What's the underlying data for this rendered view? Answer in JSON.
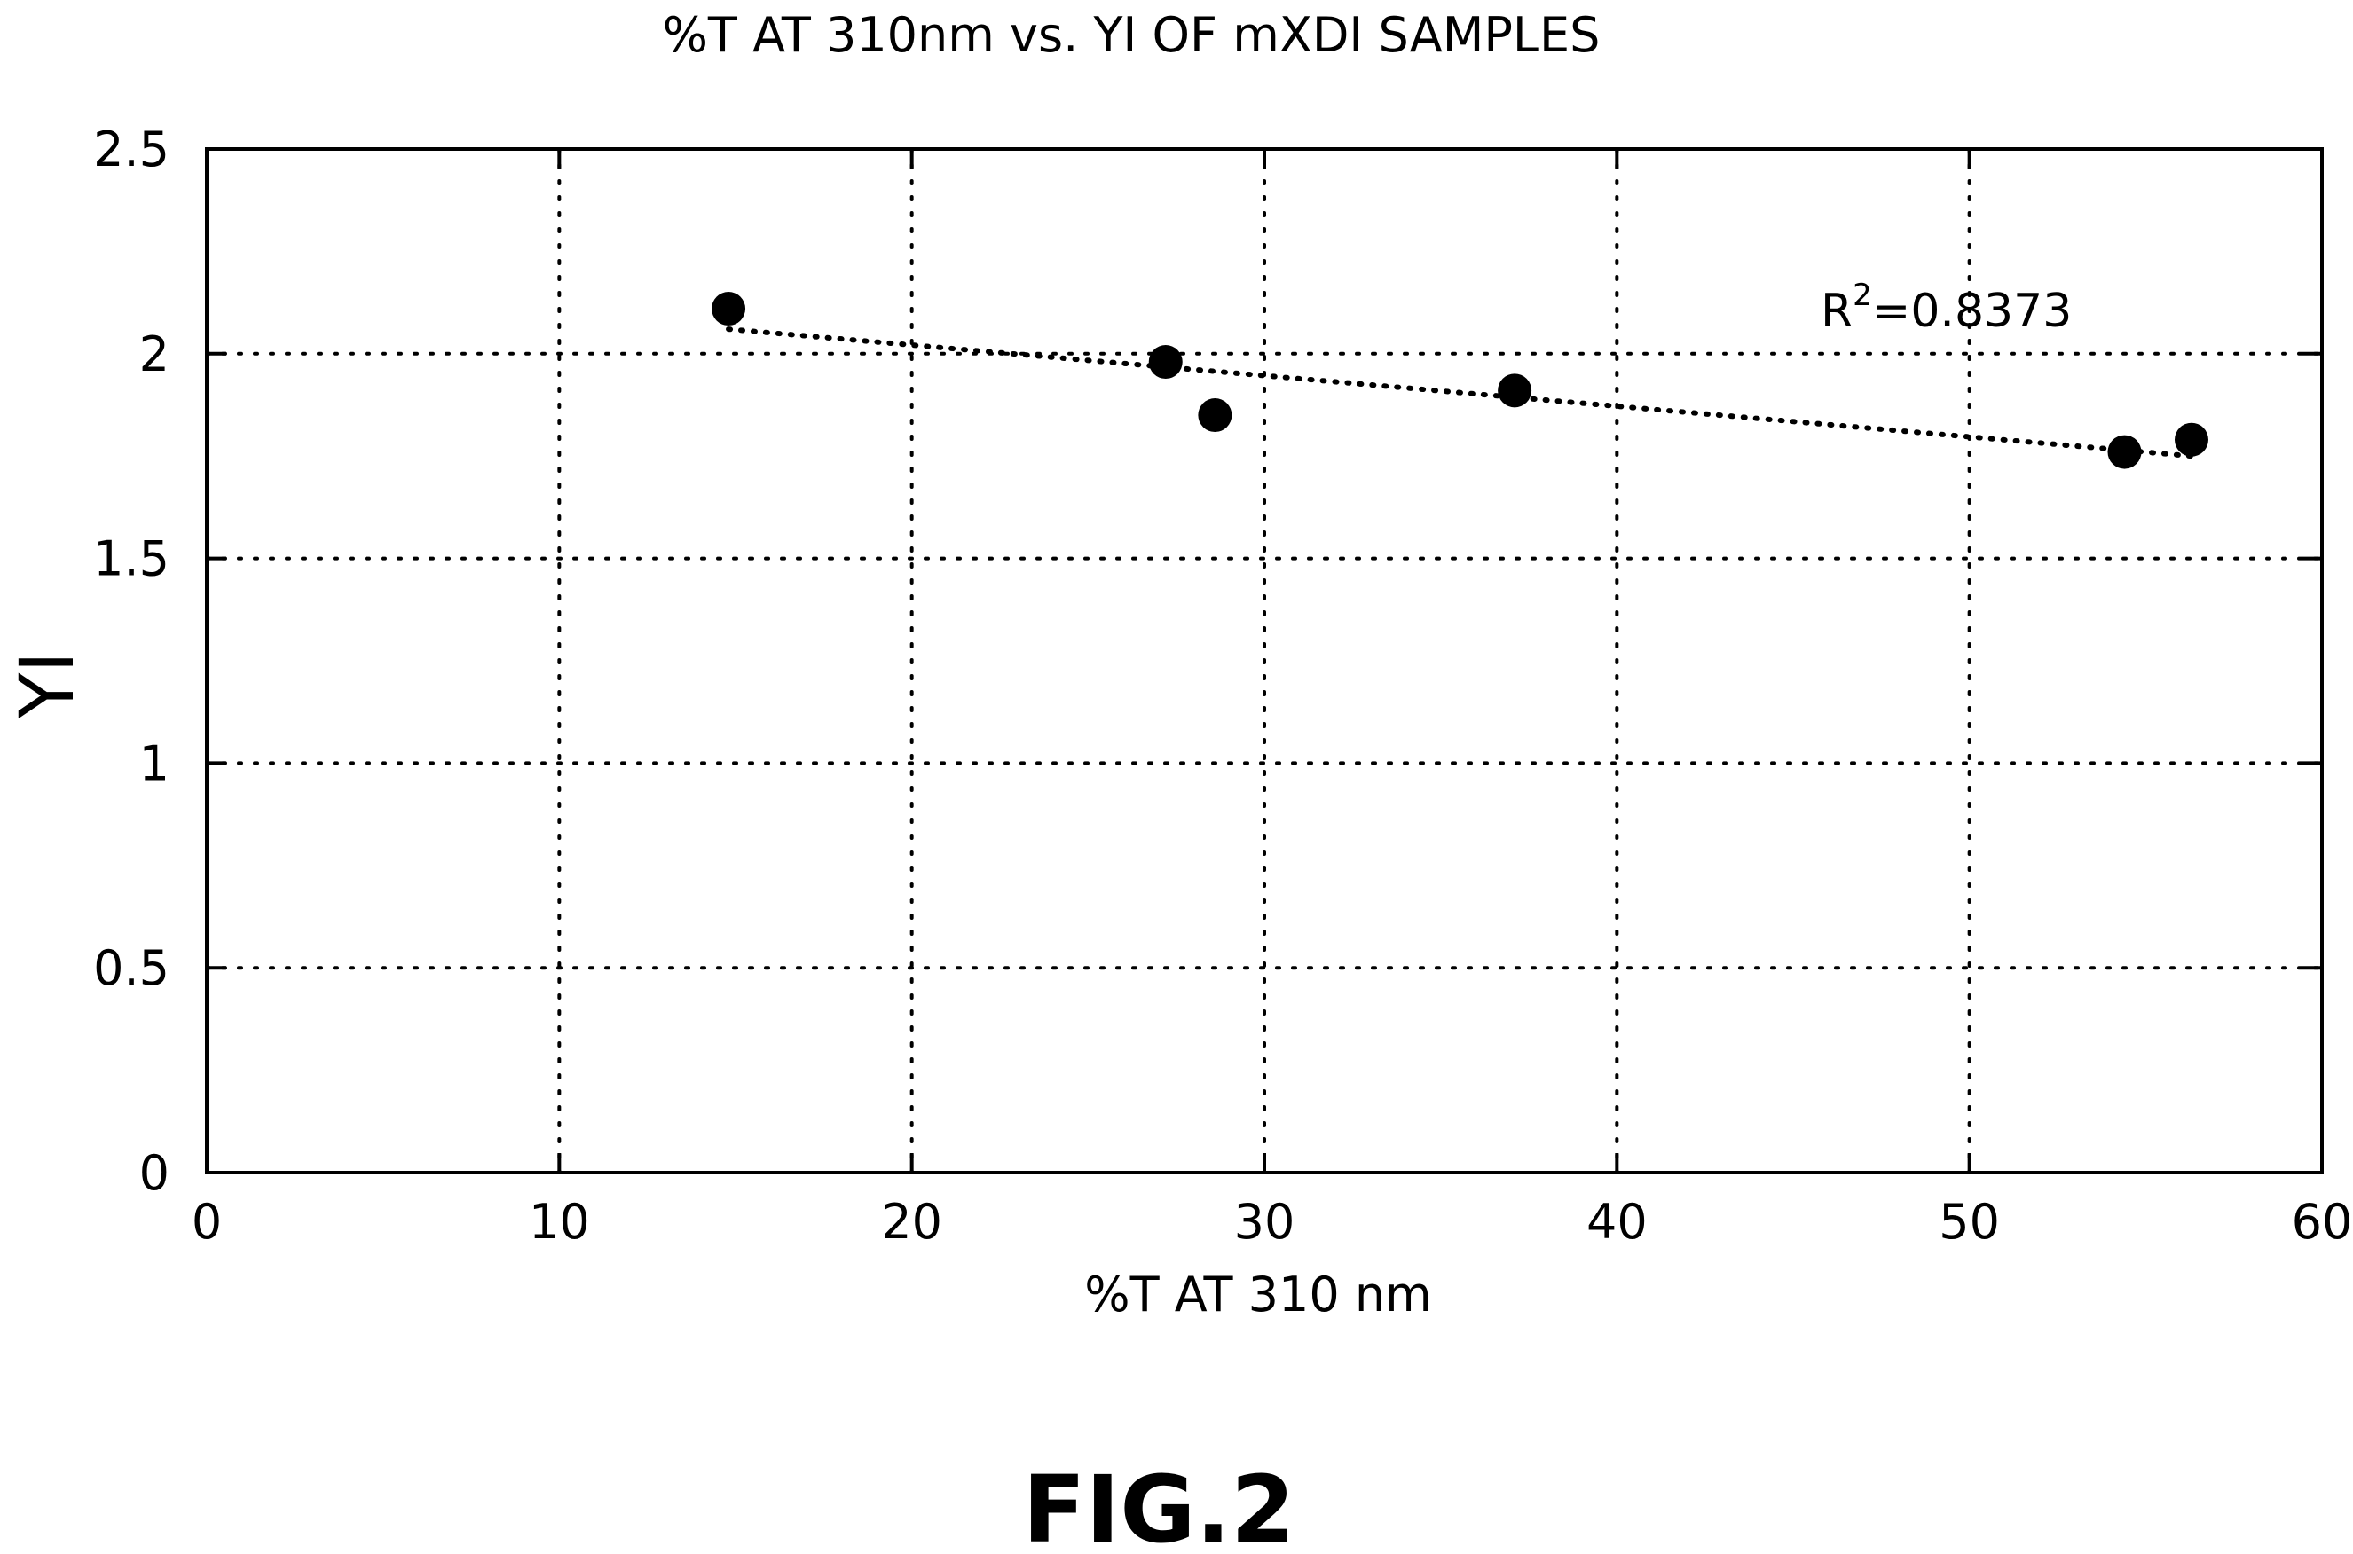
{
  "chart_data": {
    "type": "scatter",
    "title": "%T AT 310nm vs. YI OF mXDI SAMPLES",
    "xlabel": "%T AT 310 nm",
    "ylabel": "YI",
    "xlim": [
      0,
      60
    ],
    "ylim": [
      0,
      2.5
    ],
    "xticks": [
      0,
      10,
      20,
      30,
      40,
      50,
      60
    ],
    "yticks": [
      0,
      0.5,
      1,
      1.5,
      2,
      2.5
    ],
    "xtick_labels": [
      "0",
      "10",
      "20",
      "30",
      "40",
      "50",
      "60"
    ],
    "ytick_labels": [
      "0",
      "0.5",
      "1",
      "1.5",
      "2",
      "2.5"
    ],
    "grid": true,
    "series": [
      {
        "x": [
          14.8,
          27.2,
          28.6,
          37.1,
          54.4,
          56.3
        ],
        "y": [
          2.11,
          1.98,
          1.85,
          1.91,
          1.76,
          1.79
        ]
      }
    ],
    "trendline": {
      "style": "dotted",
      "x": [
        14.8,
        56.3
      ],
      "y": [
        2.06,
        1.75
      ]
    },
    "annotation": {
      "base": "R",
      "sup": "2",
      "rest": "=0.8373"
    },
    "figure_label": "FIG.2"
  }
}
